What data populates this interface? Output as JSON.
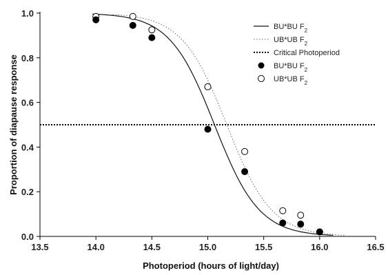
{
  "chart_data": {
    "type": "scatter",
    "xlabel": "Photoperiod (hours of light/day)",
    "ylabel": "Proportion of diapause response",
    "xlim": [
      13.5,
      16.5
    ],
    "ylim": [
      0.0,
      1.0
    ],
    "x_ticks": [
      "13.5",
      "14.0",
      "14.5",
      "15.0",
      "15.5",
      "16.0",
      "16.5"
    ],
    "y_ticks": [
      "0.0",
      "0.2",
      "0.4",
      "0.6",
      "0.8",
      "1.0"
    ],
    "grid": false,
    "legend_position": "top-right",
    "legend": [
      {
        "label": "BU*BU F",
        "sub": "2",
        "kind": "solid-line"
      },
      {
        "label": "UB*UB F",
        "sub": "2",
        "kind": "dotted-line"
      },
      {
        "label": "Critical Photoperiod",
        "sub": "",
        "kind": "thick-dotted-line"
      },
      {
        "label": "BU*BU F",
        "sub": "2",
        "kind": "filled-circle"
      },
      {
        "label": "UB*UB F",
        "sub": "2",
        "kind": "open-circle"
      }
    ],
    "series": [
      {
        "name": "BU*BU F2",
        "kind": "points",
        "marker": "filled",
        "x": [
          14.0,
          14.33,
          14.5,
          15.0,
          15.33,
          15.67,
          15.83,
          16.0
        ],
        "y": [
          0.97,
          0.945,
          0.89,
          0.48,
          0.29,
          0.06,
          0.055,
          0.02
        ]
      },
      {
        "name": "UB*UB F2",
        "kind": "points",
        "marker": "open",
        "x": [
          14.0,
          14.33,
          14.5,
          15.0,
          15.33,
          15.67,
          15.83,
          16.0
        ],
        "y": [
          0.985,
          0.985,
          0.925,
          0.67,
          0.38,
          0.115,
          0.095,
          0.02
        ]
      },
      {
        "name": "BU*BU F2",
        "kind": "fitted-curve",
        "style": "solid",
        "x_range": [
          13.97,
          16.12
        ],
        "midpoint": 15.06,
        "scale": 0.2
      },
      {
        "name": "UB*UB F2",
        "kind": "fitted-curve",
        "style": "dotted",
        "x_range": [
          14.15,
          16.22
        ],
        "midpoint": 15.17,
        "scale": 0.2
      }
    ],
    "reference_line": {
      "name": "Critical Photoperiod",
      "y": 0.5
    }
  }
}
